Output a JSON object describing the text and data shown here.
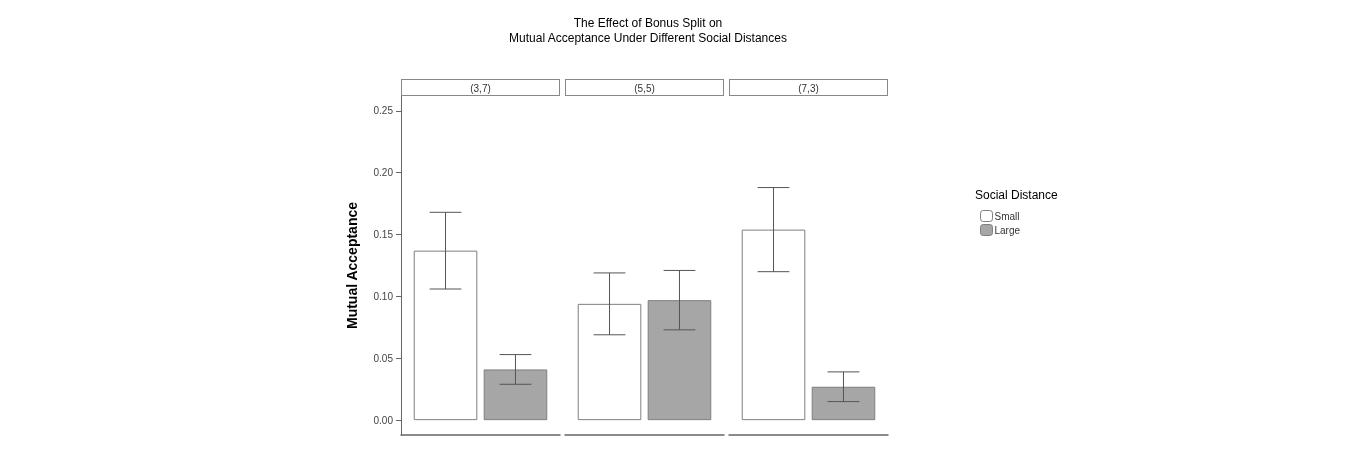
{
  "chart_data": {
    "type": "bar",
    "title": "The Effect of Bonus Split on\nMutual Acceptance Under Different Social Distances",
    "ylabel": "Mutual Acceptance",
    "legend_title": "Social Distance",
    "categories": [
      "(3,7)",
      "(5,5)",
      "(7,3)"
    ],
    "series": [
      {
        "name": "Small",
        "color": "#ffffff",
        "values": [
          0.137,
          0.094,
          0.154
        ],
        "errors": [
          [
            0.106,
            0.168
          ],
          [
            0.069,
            0.119
          ],
          [
            0.12,
            0.188
          ]
        ]
      },
      {
        "name": "Large",
        "color": "#a6a6a6",
        "values": [
          0.041,
          0.097,
          0.027
        ],
        "errors": [
          [
            0.029,
            0.053
          ],
          [
            0.073,
            0.121
          ],
          [
            0.015,
            0.039
          ]
        ]
      }
    ],
    "ylim": [
      -0.012,
      0.262
    ],
    "yticks": [
      {
        "value": 0,
        "label": "0.00"
      },
      {
        "value": 0.05,
        "label": "0.05"
      },
      {
        "value": 0.1,
        "label": "0.10"
      },
      {
        "value": 0.15,
        "label": "0.15"
      },
      {
        "value": 0.2,
        "label": "0.20"
      },
      {
        "value": 0.25,
        "label": "0.25"
      }
    ],
    "grid": false,
    "legend": "right"
  }
}
